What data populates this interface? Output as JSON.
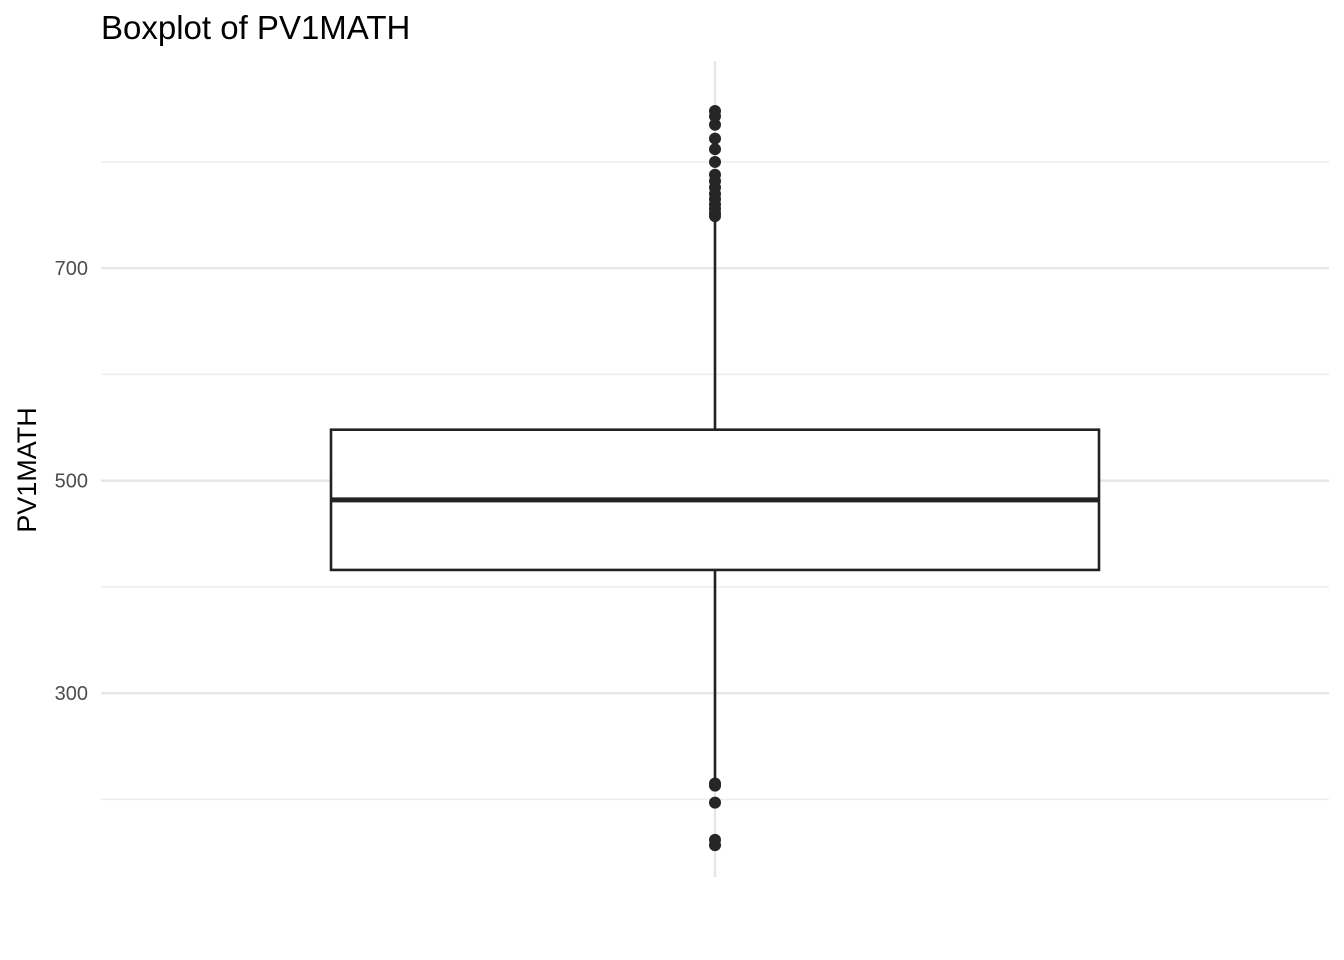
{
  "chart_data": {
    "type": "boxplot",
    "title": "Boxplot of PV1MATH",
    "xlabel": "",
    "ylabel": "PV1MATH",
    "ylim": [
      127,
      895
    ],
    "yticks": [
      300,
      500,
      700
    ],
    "minor_yticks": [
      200,
      400,
      600,
      800
    ],
    "grid": true,
    "box": {
      "q1": 416,
      "median": 482,
      "q3": 548,
      "whisker_low": 216,
      "whisker_high": 748
    },
    "outliers": [
      848,
      843,
      835,
      822,
      812,
      800,
      788,
      782,
      776,
      770,
      765,
      760,
      756,
      752,
      749,
      215,
      213,
      197,
      162,
      157
    ]
  }
}
